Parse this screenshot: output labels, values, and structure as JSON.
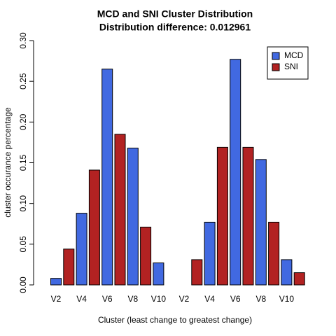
{
  "chart_data": {
    "type": "bar",
    "title": "MCD and SNI Cluster Distribution",
    "subtitle": "Distribution difference: 0.012961",
    "x_label": "Cluster (least change to greatest change)",
    "y_label": "cluster occurance percentage",
    "categories": [
      "V2",
      null,
      "V4",
      null,
      "V6",
      null,
      "V8",
      null,
      "V10",
      null,
      "V2",
      null,
      "V4",
      null,
      "V6",
      null,
      "V8",
      null,
      "V10",
      null
    ],
    "series": [
      {
        "name": "MCD",
        "color": "#4169e1",
        "values": [
          0.008,
          null,
          0.088,
          null,
          0.265,
          null,
          0.168,
          null,
          0.027,
          null,
          0,
          null,
          0.077,
          null,
          0.277,
          null,
          0.154,
          null,
          0.031,
          null
        ]
      },
      {
        "name": "SNI",
        "color": "#b22222",
        "values": [
          null,
          0.044,
          null,
          0.141,
          null,
          0.185,
          null,
          0.071,
          null,
          0,
          null,
          0.031,
          null,
          0.169,
          null,
          0.169,
          null,
          0.077,
          null,
          0.015
        ]
      }
    ],
    "ylim": [
      0,
      0.3
    ],
    "yticks": [
      {
        "value": 0,
        "label": "0.00"
      },
      {
        "value": 0.05,
        "label": "0.05"
      },
      {
        "value": 0.1,
        "label": "0.10"
      },
      {
        "value": 0.15,
        "label": "0.15"
      },
      {
        "value": 0.2,
        "label": "0.20"
      },
      {
        "value": 0.25,
        "label": "0.25"
      },
      {
        "value": 0.3,
        "label": "0.30"
      }
    ],
    "legend": "top-right"
  }
}
